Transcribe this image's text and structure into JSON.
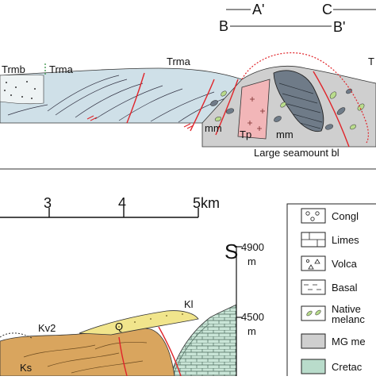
{
  "section_top": {
    "markers": {
      "a_prime": "A'",
      "b": "B",
      "c": "C",
      "b_prime": "B'"
    },
    "unit_labels": {
      "trmb": "Trmb",
      "trma_left": "Trma",
      "trma_mid": "Trma",
      "t_right": "T",
      "mm_1": "mm",
      "tp": "Tp",
      "mm_2": "mm"
    },
    "callout": "Large seamount bl"
  },
  "section_bottom": {
    "scale": {
      "tick_3": "3",
      "tick_4": "4",
      "tick_5": "5km"
    },
    "direction": "S",
    "elevations": {
      "e1": "4900",
      "e1_unit": "m",
      "e2": "4500",
      "e2_unit": "m"
    },
    "unit_labels": {
      "kv2": "Kv2",
      "q": "Q",
      "kl": "Kl",
      "ks": "Ks"
    }
  },
  "legend": {
    "items": [
      {
        "label": "Congl",
        "swatch": "conglomerate"
      },
      {
        "label": "Limes",
        "swatch": "limestone"
      },
      {
        "label": "Volca",
        "swatch": "volcanic"
      },
      {
        "label": "Basal",
        "swatch": "basalt"
      },
      {
        "label": "Native",
        "label2": "melanc",
        "swatch": "native-melange"
      },
      {
        "label": "MG me",
        "swatch": "mg-melange"
      },
      {
        "label": "Cretac",
        "swatch": "cretaceous"
      }
    ]
  },
  "colors": {
    "blue_unit": "#cfe0e8",
    "grey_unit": "#cfcfcf",
    "dark_block": "#6f7b88",
    "pink_unit": "#f2b6b8",
    "orange_unit": "#d9a55e",
    "yellow_unit": "#f1e58c",
    "green_unit": "#b9dccb",
    "fault": "#e0242a"
  }
}
